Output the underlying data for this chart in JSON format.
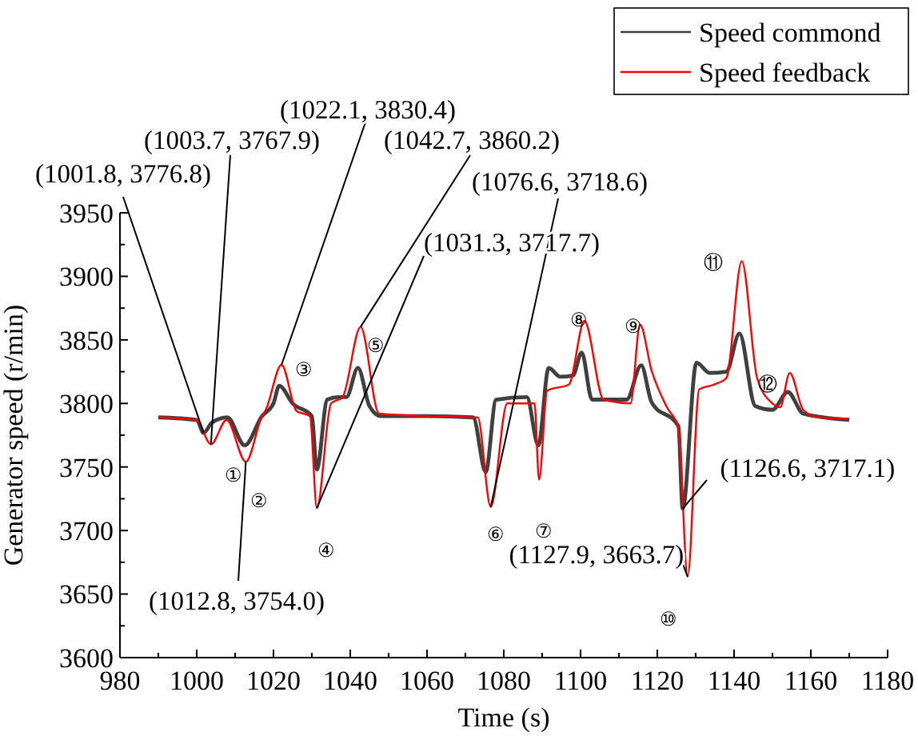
{
  "chart_data": {
    "type": "line",
    "xlabel": "Time (s)",
    "ylabel": "Generator speed (r/min)",
    "xlim": [
      980,
      1180
    ],
    "ylim": [
      3600,
      3950
    ],
    "xticks": [
      980,
      {
        "value": 990,
        "label": null
      },
      1000,
      {
        "value": 1010,
        "label": null
      },
      1020,
      {
        "value": 1030,
        "label": null
      },
      1040,
      {
        "value": 1050,
        "label": null
      },
      1060,
      {
        "value": 1070,
        "label": null
      },
      1080,
      {
        "value": 1090,
        "label": null
      },
      1100,
      {
        "value": 1110,
        "label": null
      },
      1120,
      {
        "value": 1130,
        "label": null
      },
      1140,
      {
        "value": 1150,
        "label": null
      },
      1160,
      {
        "value": 1170,
        "label": null
      },
      1180
    ],
    "yticks": [
      3600,
      {
        "value": 3625,
        "label": null
      },
      3650,
      {
        "value": 3675,
        "label": null
      },
      3700,
      {
        "value": 3725,
        "label": null
      },
      3750,
      {
        "value": 3775,
        "label": null
      },
      3800,
      {
        "value": 3825,
        "label": null
      },
      3850,
      {
        "value": 3875,
        "label": null
      },
      3900,
      {
        "value": 3925,
        "label": null
      },
      3950
    ],
    "grid": false,
    "legend": "top right",
    "marker": "none",
    "line_style": "solid",
    "series": [
      {
        "name": "Speed commond",
        "color": "#404040",
        "x": [
          990,
          1000,
          1001.8,
          1004,
          1008,
          1012.5,
          1017,
          1020,
          1021.5,
          1025,
          1030,
          1031.3,
          1034,
          1037,
          1039,
          1042,
          1045,
          1048,
          1060,
          1072,
          1075.3,
          1078,
          1086,
          1089,
          1091.7,
          1094.7,
          1098,
          1100.3,
          1103,
          1112,
          1115.8,
          1118.5,
          1125.5,
          1126.6,
          1130.2,
          1133.7,
          1138,
          1141.4,
          1145.5,
          1150,
          1154,
          1158,
          1170
        ],
        "values": [
          3789,
          3787,
          3776.8,
          3785,
          3789,
          3767,
          3790,
          3800,
          3814,
          3800,
          3790,
          3748,
          3803,
          3805,
          3805,
          3828,
          3798,
          3790,
          3790,
          3789,
          3746,
          3803,
          3805,
          3767,
          3828,
          3821,
          3822,
          3840,
          3803,
          3803,
          3830,
          3801,
          3782,
          3717.1,
          3832,
          3824,
          3825,
          3855,
          3798,
          3795,
          3809,
          3792,
          3787
        ]
      },
      {
        "name": "Speed feedback",
        "color": "#ff0000",
        "x": [
          990,
          1000,
          1003.7,
          1007.8,
          1012.8,
          1017,
          1018,
          1022.1,
          1026,
          1029.5,
          1031.3,
          1035,
          1038,
          1042.7,
          1047.5,
          1060,
          1073.2,
          1076.6,
          1080.9,
          1088,
          1089.2,
          1091.3,
          1097,
          1101,
          1106,
          1113,
          1115.5,
          1118.5,
          1122.5,
          1125.5,
          1127.9,
          1130.9,
          1135,
          1138,
          1142,
          1146,
          1150,
          1152,
          1154.5,
          1158,
          1162,
          1170
        ],
        "values": [
          3789,
          3787,
          3767.9,
          3787,
          3754.0,
          3790,
          3795,
          3830.4,
          3794,
          3790,
          3717.7,
          3800,
          3805,
          3860.2,
          3792,
          3790,
          3789,
          3718.6,
          3800,
          3800,
          3740,
          3810,
          3815,
          3865,
          3803,
          3800,
          3862,
          3826,
          3797,
          3781,
          3663.7,
          3811,
          3815,
          3820,
          3912,
          3820,
          3800,
          3797,
          3824,
          3795,
          3789,
          3788
        ]
      }
    ],
    "annotations": [
      {
        "text": "(1001.8, 3776.8)",
        "x": 1001.8,
        "y": 3776.8
      },
      {
        "text": "(1003.7, 3767.9)",
        "x": 1003.7,
        "y": 3767.9
      },
      {
        "text": "(1022.1, 3830.4)",
        "x": 1022.1,
        "y": 3830.4
      },
      {
        "text": "(1042.7, 3860.2)",
        "x": 1042.7,
        "y": 3860.2
      },
      {
        "text": "(1076.6, 3718.6)",
        "x": 1076.6,
        "y": 3718.6
      },
      {
        "text": "(1031.3, 3717.7)",
        "x": 1031.3,
        "y": 3717.7
      },
      {
        "text": "(1012.8, 3754.0)",
        "x": 1012.8,
        "y": 3754.0
      },
      {
        "text": "(1127.9, 3663.7)",
        "x": 1127.9,
        "y": 3663.7
      },
      {
        "text": "(1126.6, 3717.1)",
        "x": 1126.6,
        "y": 3717.1
      },
      "①",
      "②",
      "③",
      "④",
      "⑤",
      "⑥",
      "⑦",
      "⑧",
      "⑨",
      "⑩",
      "⑪",
      "⑫"
    ]
  }
}
